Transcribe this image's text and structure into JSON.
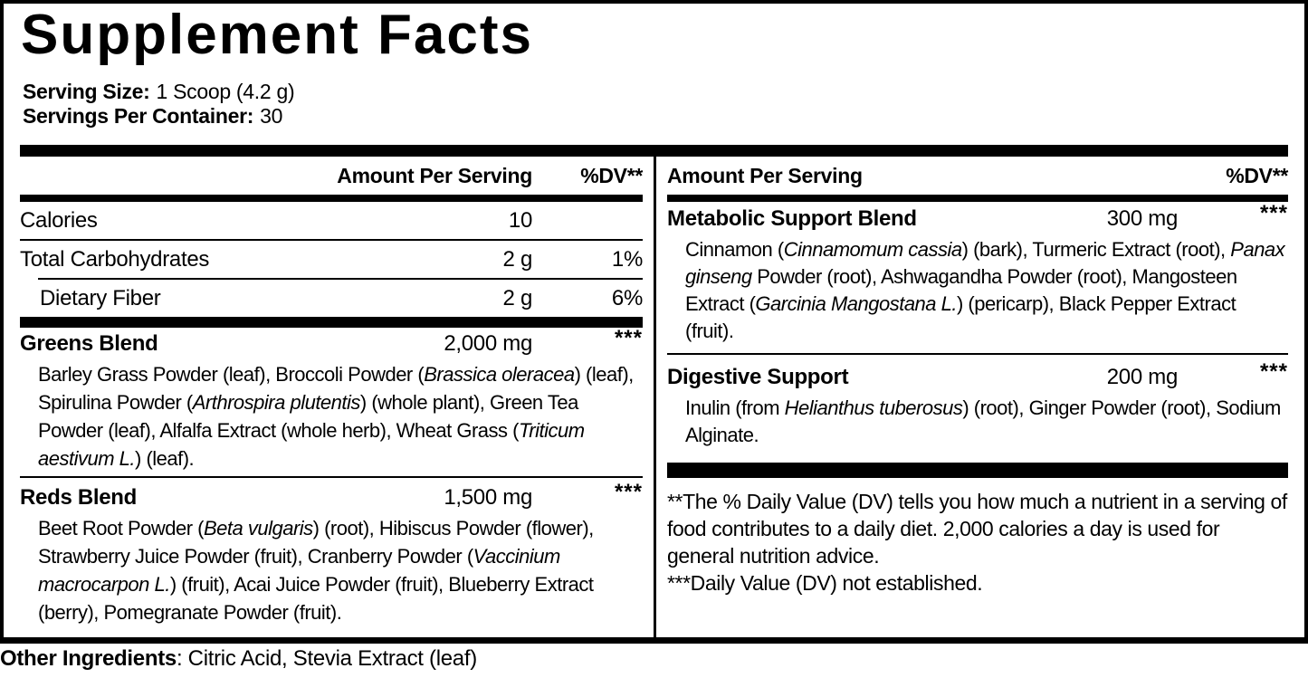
{
  "title": "Supplement Facts",
  "serving": {
    "size_label": "Serving Size:",
    "size_value": "1 Scoop (4.2 g)",
    "per_container_label": "Servings Per Container:",
    "per_container_value": "30"
  },
  "table": {
    "header": {
      "amount": "Amount Per Serving",
      "dv": "%DV**"
    },
    "left": {
      "nutrients": [
        {
          "name": "Calories",
          "amount": "10",
          "dv": "",
          "indent": false
        },
        {
          "name": "Total Carbohydrates",
          "amount": "2 g",
          "dv": "1%",
          "indent": false
        },
        {
          "name": "Dietary Fiber",
          "amount": "2 g",
          "dv": "6%",
          "indent": true
        }
      ],
      "blends": [
        {
          "name": "Greens Blend",
          "amount": "2,000 mg",
          "dv": "***",
          "desc": [
            {
              "t": "Barley Grass Powder (leaf), Broccoli Powder ("
            },
            {
              "t": "Brassica oleracea",
              "i": true
            },
            {
              "t": ") (leaf), Spirulina Powder ("
            },
            {
              "t": "Arthrospira plutentis",
              "i": true
            },
            {
              "t": ") (whole plant), Green Tea Powder (leaf), Alfalfa Extract (whole herb), Wheat Grass ("
            },
            {
              "t": "Triticum aestivum L.",
              "i": true
            },
            {
              "t": ") (leaf)."
            }
          ]
        },
        {
          "name": "Reds Blend",
          "amount": "1,500 mg",
          "dv": "***",
          "desc": [
            {
              "t": "Beet Root Powder ("
            },
            {
              "t": "Beta vulgaris",
              "i": true
            },
            {
              "t": ") (root), Hibiscus Powder (flower), Strawberry Juice Powder (fruit), Cranberry Powder ("
            },
            {
              "t": "Vaccinium macrocarpon L.",
              "i": true
            },
            {
              "t": ") (fruit), Acai Juice Powder (fruit), Blueberry Extract (berry), Pomegranate Powder (fruit)."
            }
          ]
        }
      ]
    },
    "right": {
      "blends": [
        {
          "name": "Metabolic Support Blend",
          "amount": "300 mg",
          "dv": "***",
          "desc": [
            {
              "t": "Cinnamon ("
            },
            {
              "t": "Cinnamomum cassia",
              "i": true
            },
            {
              "t": ") (bark), Turmeric Extract (root), "
            },
            {
              "t": "Panax ginseng",
              "i": true
            },
            {
              "t": " Powder (root), Ashwagandha Powder (root), Mangosteen Extract ("
            },
            {
              "t": "Garcinia Mangostana L.",
              "i": true
            },
            {
              "t": ") (pericarp), Black Pepper Extract (fruit)."
            }
          ]
        },
        {
          "name": "Digestive Support",
          "amount": "200 mg",
          "dv": "***",
          "desc": [
            {
              "t": "Inulin (from "
            },
            {
              "t": "Helianthus tuberosus",
              "i": true
            },
            {
              "t": ") (root), Ginger Powder (root), Sodium Alginate."
            }
          ]
        }
      ],
      "footnotes": [
        "**The % Daily Value (DV) tells you how much a nutrient in a serving of food contributes to a daily diet. 2,000 calories a day is used for general nutrition advice.",
        "***Daily Value (DV) not established."
      ]
    }
  },
  "other_ingredients": {
    "label": "Other Ingredients",
    "rest": ": Citric Acid, Stevia Extract (leaf)"
  },
  "colors": {
    "ink": "#000000",
    "background": "#ffffff"
  }
}
